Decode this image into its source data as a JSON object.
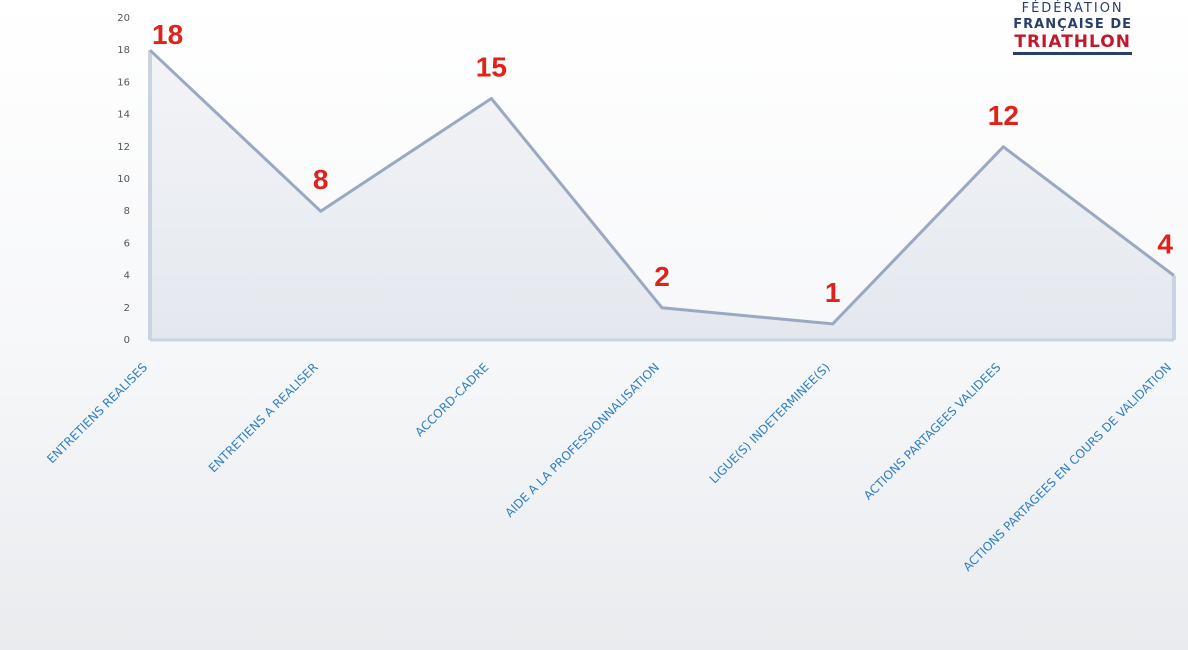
{
  "logo": {
    "line1": "FÉDÉRATION",
    "line2": "FRANÇAISE DE",
    "line3": "TRIATHLON"
  },
  "chart_data": {
    "type": "area",
    "categories": [
      "ENTRETIENS  REALISES",
      "ENTRETIENS  A REALISER",
      "ACCORD-CADRE",
      "AIDE A LA PROFESSIONNALISATION",
      "LIGUE(S) INDETERMINEE(S)",
      "ACTIONS  PARTAGEES  VALIDEES",
      "ACTIONS  PARTAGEES  EN COURS DE VALIDATION"
    ],
    "values": [
      18,
      8,
      15,
      2,
      1,
      12,
      4
    ],
    "ylim": [
      0,
      20
    ],
    "yticks": [
      0,
      2,
      4,
      6,
      8,
      10,
      12,
      14,
      16,
      18,
      20
    ],
    "grid": false,
    "legend": "none",
    "colors": {
      "line": "#9aa9c2",
      "fill": "#eef0f4",
      "data_label": "#e0221b",
      "category_label": "#2f7fc4",
      "tick_label": "#555555"
    }
  }
}
